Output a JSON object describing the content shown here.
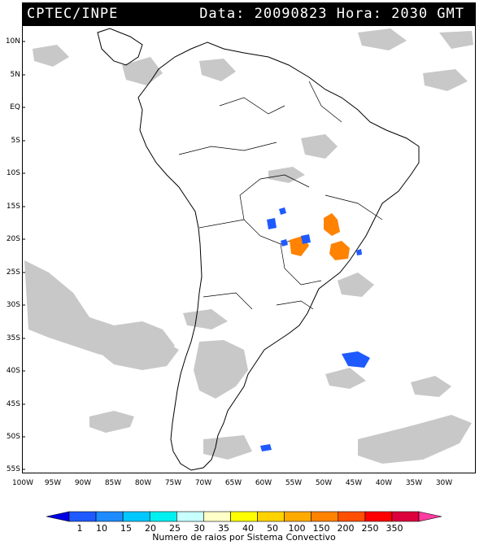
{
  "header": {
    "source": "CPTEC/INPE",
    "datetime": "Data: 20090823 Hora: 2030 GMT"
  },
  "map": {
    "lat_labels": [
      "10N",
      "5N",
      "EQ",
      "5S",
      "10S",
      "15S",
      "20S",
      "25S",
      "30S",
      "35S",
      "40S",
      "45S",
      "50S",
      "55S"
    ],
    "lon_labels": [
      "100W",
      "95W",
      "90W",
      "85W",
      "80W",
      "75W",
      "70W",
      "65W",
      "60W",
      "55W",
      "50W",
      "45W",
      "40W",
      "35W",
      "30W"
    ],
    "layers": [
      "satellite cloud cover (grey)",
      "convective systems colored by lightning count"
    ],
    "cloud_color": "#c8c8c8",
    "coast_color": "#000000"
  },
  "colorbar": {
    "ticks": [
      "1",
      "10",
      "15",
      "20",
      "25",
      "30",
      "35",
      "40",
      "50",
      "100",
      "150",
      "200",
      "250",
      "350"
    ],
    "colors": [
      "#0000e6",
      "#1e5aff",
      "#1e8cff",
      "#00c8ff",
      "#00f0f0",
      "#c8ffff",
      "#ffffc8",
      "#ffff00",
      "#ffd200",
      "#ffaa00",
      "#ff8200",
      "#ff5000",
      "#ff0000",
      "#dc003c",
      "#ff3ca0"
    ],
    "title": "Numero de raios por Sistema Convectivo"
  }
}
